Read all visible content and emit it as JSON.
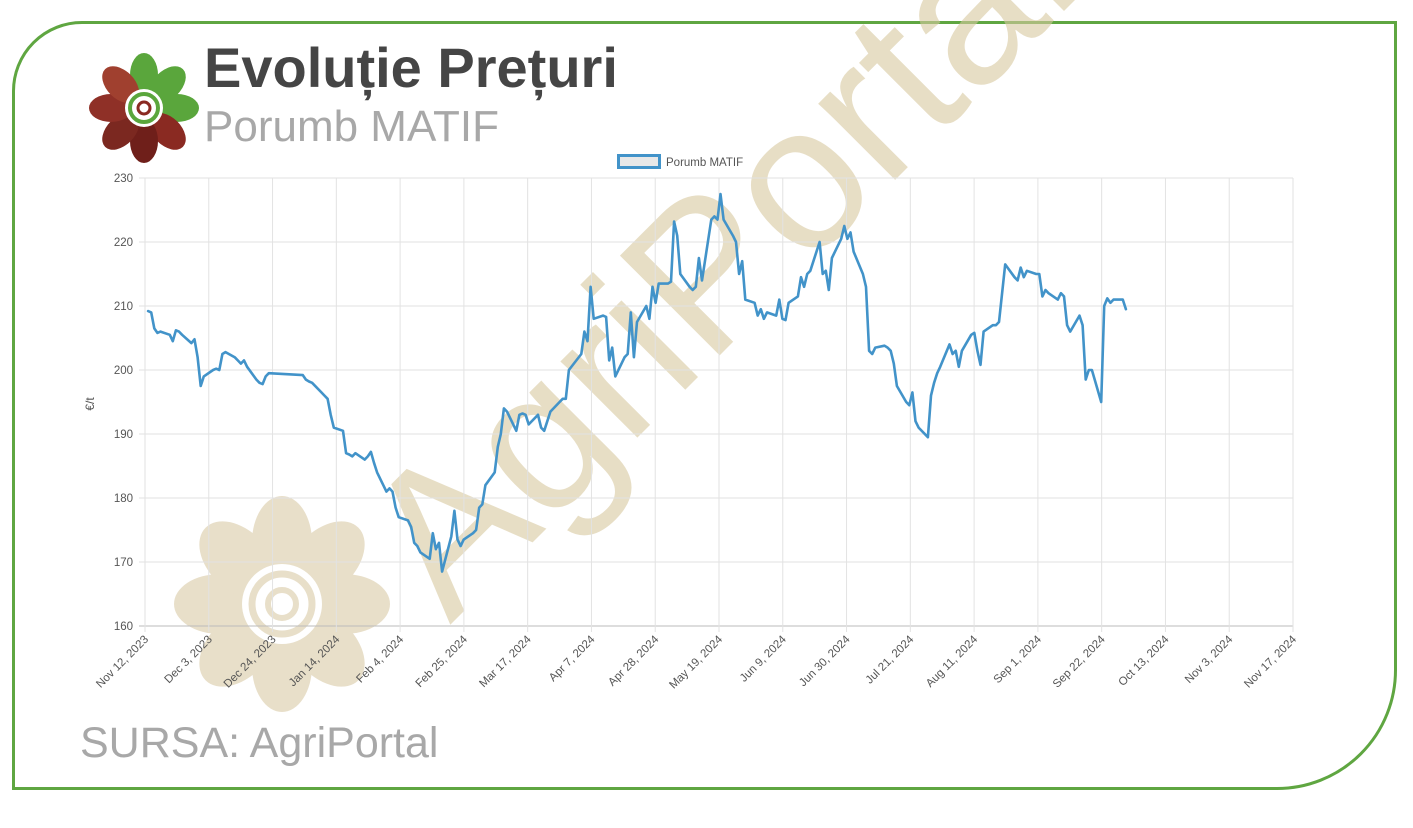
{
  "header": {
    "title": "Evoluție Prețuri",
    "subtitle": "Porumb MATIF"
  },
  "footer": {
    "source": "SURSA: AgriPortal"
  },
  "watermark": {
    "text": "AgriPortal"
  },
  "colors": {
    "border": "#5fa641",
    "line": "#4293c9",
    "legend_fill": "#e8e8e8",
    "watermark": "#d8c9a0",
    "title": "#454545",
    "subtitle": "#a8a8a8"
  },
  "chart_data": {
    "type": "line",
    "title": "",
    "xlabel": "",
    "ylabel": "€/t",
    "ylim": [
      160,
      230
    ],
    "yticks": [
      160,
      170,
      180,
      190,
      200,
      210,
      220,
      230
    ],
    "xlim": [
      "2023-11-12",
      "2024-11-17"
    ],
    "xticks": [
      "Nov 12, 2023",
      "Dec 3, 2023",
      "Dec 24, 2023",
      "Jan 14, 2024",
      "Feb 4, 2024",
      "Feb 25, 2024",
      "Mar 17, 2024",
      "Apr 7, 2024",
      "Apr 28, 2024",
      "May 19, 2024",
      "Jun 9, 2024",
      "Jun 30, 2024",
      "Jul 21, 2024",
      "Aug 11, 2024",
      "Sep 1, 2024",
      "Sep 22, 2024",
      "Oct 13, 2024",
      "Nov 3, 2024",
      "Nov 17, 2024"
    ],
    "grid": true,
    "legend_position": "top-center",
    "series": [
      {
        "name": "Porumb MATIF",
        "points": [
          [
            "2023-11-13",
            209.2
          ],
          [
            "2023-11-14",
            209.0
          ],
          [
            "2023-11-15",
            206.5
          ],
          [
            "2023-11-16",
            205.8
          ],
          [
            "2023-11-17",
            206.0
          ],
          [
            "2023-11-20",
            205.5
          ],
          [
            "2023-11-21",
            204.5
          ],
          [
            "2023-11-22",
            206.2
          ],
          [
            "2023-11-23",
            206.0
          ],
          [
            "2023-11-24",
            205.5
          ],
          [
            "2023-11-27",
            204.2
          ],
          [
            "2023-11-28",
            204.8
          ],
          [
            "2023-11-29",
            202.0
          ],
          [
            "2023-11-30",
            197.5
          ],
          [
            "2023-12-01",
            199.0
          ],
          [
            "2023-12-04",
            200.0
          ],
          [
            "2023-12-05",
            200.2
          ],
          [
            "2023-12-06",
            200.0
          ],
          [
            "2023-12-07",
            202.5
          ],
          [
            "2023-12-08",
            202.8
          ],
          [
            "2023-12-11",
            202.0
          ],
          [
            "2023-12-12",
            201.5
          ],
          [
            "2023-12-13",
            201.0
          ],
          [
            "2023-12-14",
            201.5
          ],
          [
            "2023-12-15",
            200.5
          ],
          [
            "2023-12-18",
            198.5
          ],
          [
            "2023-12-19",
            198.0
          ],
          [
            "2023-12-20",
            197.8
          ],
          [
            "2023-12-21",
            199.0
          ],
          [
            "2023-12-22",
            199.5
          ],
          [
            "2024-01-02",
            199.2
          ],
          [
            "2024-01-03",
            198.5
          ],
          [
            "2024-01-04",
            198.2
          ],
          [
            "2024-01-05",
            198.0
          ],
          [
            "2024-01-08",
            196.5
          ],
          [
            "2024-01-09",
            196.0
          ],
          [
            "2024-01-10",
            195.5
          ],
          [
            "2024-01-11",
            193.0
          ],
          [
            "2024-01-12",
            191.0
          ],
          [
            "2024-01-15",
            190.5
          ],
          [
            "2024-01-16",
            187.0
          ],
          [
            "2024-01-17",
            186.8
          ],
          [
            "2024-01-18",
            186.5
          ],
          [
            "2024-01-19",
            187.0
          ],
          [
            "2024-01-22",
            186.0
          ],
          [
            "2024-01-23",
            186.5
          ],
          [
            "2024-01-24",
            187.2
          ],
          [
            "2024-01-25",
            185.5
          ],
          [
            "2024-01-26",
            184.0
          ],
          [
            "2024-01-29",
            181.0
          ],
          [
            "2024-01-30",
            181.5
          ],
          [
            "2024-01-31",
            181.0
          ],
          [
            "2024-02-01",
            178.5
          ],
          [
            "2024-02-02",
            177.0
          ],
          [
            "2024-02-05",
            176.5
          ],
          [
            "2024-02-06",
            175.5
          ],
          [
            "2024-02-07",
            173.0
          ],
          [
            "2024-02-08",
            172.5
          ],
          [
            "2024-02-09",
            171.5
          ],
          [
            "2024-02-12",
            170.5
          ],
          [
            "2024-02-13",
            174.5
          ],
          [
            "2024-02-14",
            172.0
          ],
          [
            "2024-02-15",
            173.0
          ],
          [
            "2024-02-16",
            168.5
          ],
          [
            "2024-02-19",
            174.0
          ],
          [
            "2024-02-20",
            178.0
          ],
          [
            "2024-02-21",
            173.5
          ],
          [
            "2024-02-22",
            172.5
          ],
          [
            "2024-02-23",
            173.5
          ],
          [
            "2024-02-26",
            174.5
          ],
          [
            "2024-02-27",
            175.0
          ],
          [
            "2024-02-28",
            178.5
          ],
          [
            "2024-02-29",
            179.0
          ],
          [
            "2024-03-01",
            182.0
          ],
          [
            "2024-03-04",
            184.0
          ],
          [
            "2024-03-05",
            188.0
          ],
          [
            "2024-03-06",
            190.0
          ],
          [
            "2024-03-07",
            194.0
          ],
          [
            "2024-03-08",
            193.5
          ],
          [
            "2024-03-11",
            190.5
          ],
          [
            "2024-03-12",
            193.0
          ],
          [
            "2024-03-13",
            193.2
          ],
          [
            "2024-03-14",
            193.0
          ],
          [
            "2024-03-15",
            191.5
          ],
          [
            "2024-03-18",
            193.0
          ],
          [
            "2024-03-19",
            191.0
          ],
          [
            "2024-03-20",
            190.5
          ],
          [
            "2024-03-21",
            192.0
          ],
          [
            "2024-03-22",
            193.5
          ],
          [
            "2024-03-25",
            195.0
          ],
          [
            "2024-03-26",
            195.5
          ],
          [
            "2024-03-27",
            195.5
          ],
          [
            "2024-03-28",
            200.0
          ],
          [
            "2024-04-01",
            202.5
          ],
          [
            "2024-04-02",
            206.0
          ],
          [
            "2024-04-03",
            204.5
          ],
          [
            "2024-04-04",
            213.0
          ],
          [
            "2024-04-05",
            208.0
          ],
          [
            "2024-04-08",
            208.5
          ],
          [
            "2024-04-09",
            208.3
          ],
          [
            "2024-04-10",
            201.5
          ],
          [
            "2024-04-11",
            203.5
          ],
          [
            "2024-04-12",
            199.0
          ],
          [
            "2024-04-15",
            202.0
          ],
          [
            "2024-04-16",
            202.5
          ],
          [
            "2024-04-17",
            209.0
          ],
          [
            "2024-04-18",
            202.0
          ],
          [
            "2024-04-19",
            207.5
          ],
          [
            "2024-04-22",
            210.0
          ],
          [
            "2024-04-23",
            208.0
          ],
          [
            "2024-04-24",
            213.0
          ],
          [
            "2024-04-25",
            210.5
          ],
          [
            "2024-04-26",
            213.5
          ],
          [
            "2024-04-29",
            213.5
          ],
          [
            "2024-04-30",
            213.8
          ],
          [
            "2024-05-01",
            223.2
          ],
          [
            "2024-05-02",
            221.0
          ],
          [
            "2024-05-03",
            215.0
          ],
          [
            "2024-05-06",
            213.0
          ],
          [
            "2024-05-07",
            212.5
          ],
          [
            "2024-05-08",
            213.0
          ],
          [
            "2024-05-09",
            217.5
          ],
          [
            "2024-05-10",
            214.0
          ],
          [
            "2024-05-13",
            223.5
          ],
          [
            "2024-05-14",
            224.0
          ],
          [
            "2024-05-15",
            223.5
          ],
          [
            "2024-05-16",
            227.5
          ],
          [
            "2024-05-17",
            223.5
          ],
          [
            "2024-05-20",
            221.0
          ],
          [
            "2024-05-21",
            220.0
          ],
          [
            "2024-05-22",
            215.0
          ],
          [
            "2024-05-23",
            217.0
          ],
          [
            "2024-05-24",
            211.0
          ],
          [
            "2024-05-27",
            210.5
          ],
          [
            "2024-05-28",
            208.5
          ],
          [
            "2024-05-29",
            209.5
          ],
          [
            "2024-05-30",
            208.0
          ],
          [
            "2024-05-31",
            209.0
          ],
          [
            "2024-06-03",
            208.5
          ],
          [
            "2024-06-04",
            211.0
          ],
          [
            "2024-06-05",
            208.0
          ],
          [
            "2024-06-06",
            207.8
          ],
          [
            "2024-06-07",
            210.5
          ],
          [
            "2024-06-10",
            211.5
          ],
          [
            "2024-06-11",
            214.5
          ],
          [
            "2024-06-12",
            213.0
          ],
          [
            "2024-06-13",
            215.0
          ],
          [
            "2024-06-14",
            215.5
          ],
          [
            "2024-06-17",
            220.0
          ],
          [
            "2024-06-18",
            215.0
          ],
          [
            "2024-06-19",
            215.5
          ],
          [
            "2024-06-20",
            212.5
          ],
          [
            "2024-06-21",
            217.5
          ],
          [
            "2024-06-24",
            220.5
          ],
          [
            "2024-06-25",
            222.5
          ],
          [
            "2024-06-26",
            220.5
          ],
          [
            "2024-06-27",
            221.5
          ],
          [
            "2024-06-28",
            218.5
          ],
          [
            "2024-07-01",
            215.0
          ],
          [
            "2024-07-02",
            213.0
          ],
          [
            "2024-07-03",
            203.0
          ],
          [
            "2024-07-04",
            202.5
          ],
          [
            "2024-07-05",
            203.5
          ],
          [
            "2024-07-08",
            203.8
          ],
          [
            "2024-07-09",
            203.5
          ],
          [
            "2024-07-10",
            203.0
          ],
          [
            "2024-07-11",
            201.0
          ],
          [
            "2024-07-12",
            197.5
          ],
          [
            "2024-07-15",
            195.0
          ],
          [
            "2024-07-16",
            194.5
          ],
          [
            "2024-07-17",
            196.5
          ],
          [
            "2024-07-18",
            192.0
          ],
          [
            "2024-07-19",
            191.0
          ],
          [
            "2024-07-22",
            189.5
          ],
          [
            "2024-07-23",
            196.0
          ],
          [
            "2024-07-24",
            198.0
          ],
          [
            "2024-07-25",
            199.5
          ],
          [
            "2024-07-26",
            200.5
          ],
          [
            "2024-07-29",
            204.0
          ],
          [
            "2024-07-30",
            202.5
          ],
          [
            "2024-07-31",
            203.0
          ],
          [
            "2024-08-01",
            200.5
          ],
          [
            "2024-08-02",
            203.0
          ],
          [
            "2024-08-05",
            205.5
          ],
          [
            "2024-08-06",
            205.8
          ],
          [
            "2024-08-07",
            203.0
          ],
          [
            "2024-08-08",
            200.8
          ],
          [
            "2024-08-09",
            206.0
          ],
          [
            "2024-08-12",
            207.0
          ],
          [
            "2024-08-13",
            207.0
          ],
          [
            "2024-08-14",
            207.5
          ],
          [
            "2024-08-15",
            212.0
          ],
          [
            "2024-08-16",
            216.5
          ],
          [
            "2024-08-19",
            214.5
          ],
          [
            "2024-08-20",
            214.0
          ],
          [
            "2024-08-21",
            216.0
          ],
          [
            "2024-08-22",
            214.5
          ],
          [
            "2024-08-23",
            215.5
          ],
          [
            "2024-08-26",
            215.0
          ],
          [
            "2024-08-27",
            215.0
          ],
          [
            "2024-08-28",
            211.5
          ],
          [
            "2024-08-29",
            212.5
          ],
          [
            "2024-08-30",
            212.0
          ],
          [
            "2024-09-02",
            211.0
          ],
          [
            "2024-09-03",
            212.0
          ],
          [
            "2024-09-04",
            211.5
          ],
          [
            "2024-09-05",
            207.0
          ],
          [
            "2024-09-06",
            206.0
          ],
          [
            "2024-09-09",
            208.5
          ],
          [
            "2024-09-10",
            207.0
          ],
          [
            "2024-09-11",
            198.5
          ],
          [
            "2024-09-12",
            200.0
          ],
          [
            "2024-09-13",
            200.0
          ],
          [
            "2024-09-16",
            195.0
          ],
          [
            "2024-09-17",
            210.0
          ],
          [
            "2024-09-18",
            211.2
          ],
          [
            "2024-09-19",
            210.5
          ],
          [
            "2024-09-20",
            211.0
          ],
          [
            "2024-09-23",
            211.0
          ],
          [
            "2024-09-24",
            209.5
          ]
        ]
      }
    ]
  }
}
